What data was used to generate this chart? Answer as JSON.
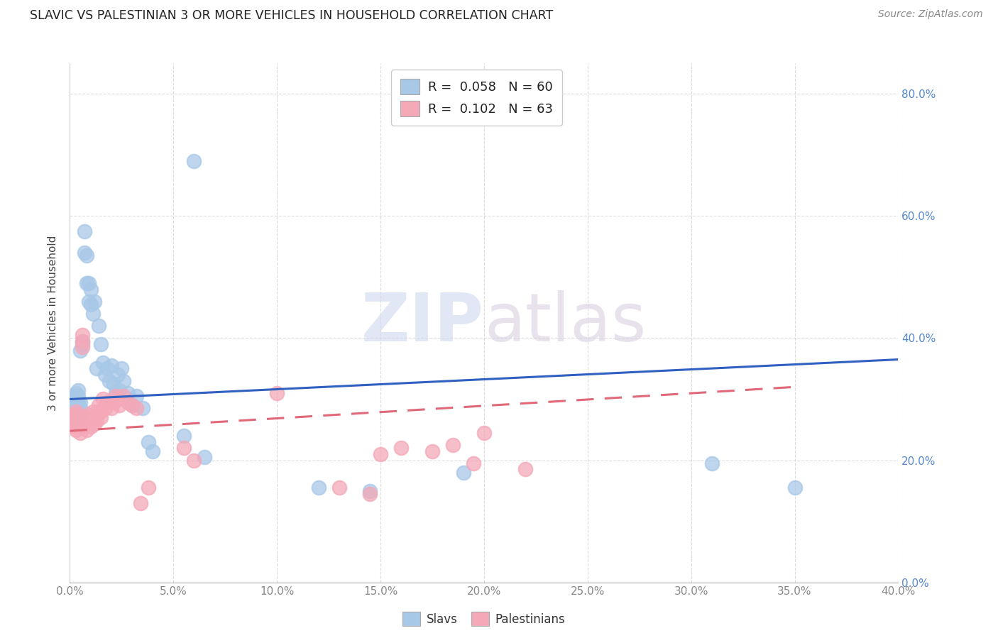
{
  "title": "SLAVIC VS PALESTINIAN 3 OR MORE VEHICLES IN HOUSEHOLD CORRELATION CHART",
  "source": "Source: ZipAtlas.com",
  "xlim": [
    0.0,
    0.4
  ],
  "ylim": [
    0.0,
    0.85
  ],
  "ylabel": "3 or more Vehicles in Household",
  "watermark_zip": "ZIP",
  "watermark_atlas": "atlas",
  "legend_label1": "R =  0.058   N = 60",
  "legend_label2": "R =  0.102   N = 63",
  "legend_bottom_label1": "Slavs",
  "legend_bottom_label2": "Palestinians",
  "slav_color": "#a8c8e8",
  "palest_color": "#f4a8b8",
  "slav_line_color": "#3060c0",
  "palest_line_color": "#e06878",
  "tick_color": "#5588cc",
  "slav_x": [
    0.001,
    0.001,
    0.001,
    0.002,
    0.002,
    0.002,
    0.002,
    0.003,
    0.003,
    0.003,
    0.003,
    0.003,
    0.004,
    0.004,
    0.004,
    0.004,
    0.005,
    0.005,
    0.005,
    0.005,
    0.006,
    0.006,
    0.007,
    0.007,
    0.008,
    0.008,
    0.009,
    0.009,
    0.01,
    0.01,
    0.011,
    0.012,
    0.013,
    0.014,
    0.015,
    0.016,
    0.017,
    0.018,
    0.019,
    0.02,
    0.021,
    0.022,
    0.023,
    0.024,
    0.025,
    0.026,
    0.028,
    0.03,
    0.032,
    0.035,
    0.038,
    0.04,
    0.055,
    0.06,
    0.065,
    0.12,
    0.145,
    0.19,
    0.31,
    0.35
  ],
  "slav_y": [
    0.285,
    0.295,
    0.3,
    0.275,
    0.28,
    0.29,
    0.305,
    0.27,
    0.285,
    0.3,
    0.31,
    0.265,
    0.28,
    0.295,
    0.305,
    0.315,
    0.27,
    0.285,
    0.295,
    0.38,
    0.39,
    0.395,
    0.54,
    0.575,
    0.49,
    0.535,
    0.46,
    0.49,
    0.455,
    0.48,
    0.44,
    0.46,
    0.35,
    0.42,
    0.39,
    0.36,
    0.34,
    0.35,
    0.33,
    0.355,
    0.325,
    0.31,
    0.34,
    0.315,
    0.35,
    0.33,
    0.31,
    0.29,
    0.305,
    0.285,
    0.23,
    0.215,
    0.24,
    0.69,
    0.205,
    0.155,
    0.15,
    0.18,
    0.195,
    0.155
  ],
  "palest_x": [
    0.001,
    0.001,
    0.002,
    0.002,
    0.002,
    0.003,
    0.003,
    0.003,
    0.003,
    0.004,
    0.004,
    0.004,
    0.005,
    0.005,
    0.005,
    0.006,
    0.006,
    0.006,
    0.007,
    0.007,
    0.008,
    0.008,
    0.009,
    0.009,
    0.01,
    0.01,
    0.011,
    0.011,
    0.012,
    0.012,
    0.013,
    0.013,
    0.014,
    0.014,
    0.015,
    0.015,
    0.016,
    0.017,
    0.018,
    0.019,
    0.02,
    0.021,
    0.022,
    0.023,
    0.024,
    0.026,
    0.028,
    0.03,
    0.032,
    0.034,
    0.038,
    0.055,
    0.06,
    0.1,
    0.13,
    0.145,
    0.15,
    0.16,
    0.175,
    0.185,
    0.195,
    0.2,
    0.22
  ],
  "palest_y": [
    0.26,
    0.27,
    0.255,
    0.265,
    0.275,
    0.25,
    0.26,
    0.27,
    0.28,
    0.255,
    0.265,
    0.275,
    0.245,
    0.255,
    0.265,
    0.385,
    0.395,
    0.405,
    0.26,
    0.27,
    0.25,
    0.26,
    0.265,
    0.275,
    0.255,
    0.265,
    0.27,
    0.28,
    0.26,
    0.27,
    0.265,
    0.275,
    0.28,
    0.29,
    0.27,
    0.28,
    0.3,
    0.285,
    0.295,
    0.295,
    0.285,
    0.295,
    0.305,
    0.3,
    0.29,
    0.305,
    0.295,
    0.29,
    0.285,
    0.13,
    0.155,
    0.22,
    0.2,
    0.31,
    0.155,
    0.145,
    0.21,
    0.22,
    0.215,
    0.225,
    0.195,
    0.245,
    0.185
  ],
  "slav_line_x0": 0.0,
  "slav_line_x1": 0.4,
  "slav_line_y0": 0.3,
  "slav_line_y1": 0.365,
  "palest_line_x0": 0.0,
  "palest_line_x1": 0.35,
  "palest_line_y0": 0.248,
  "palest_line_y1": 0.32
}
